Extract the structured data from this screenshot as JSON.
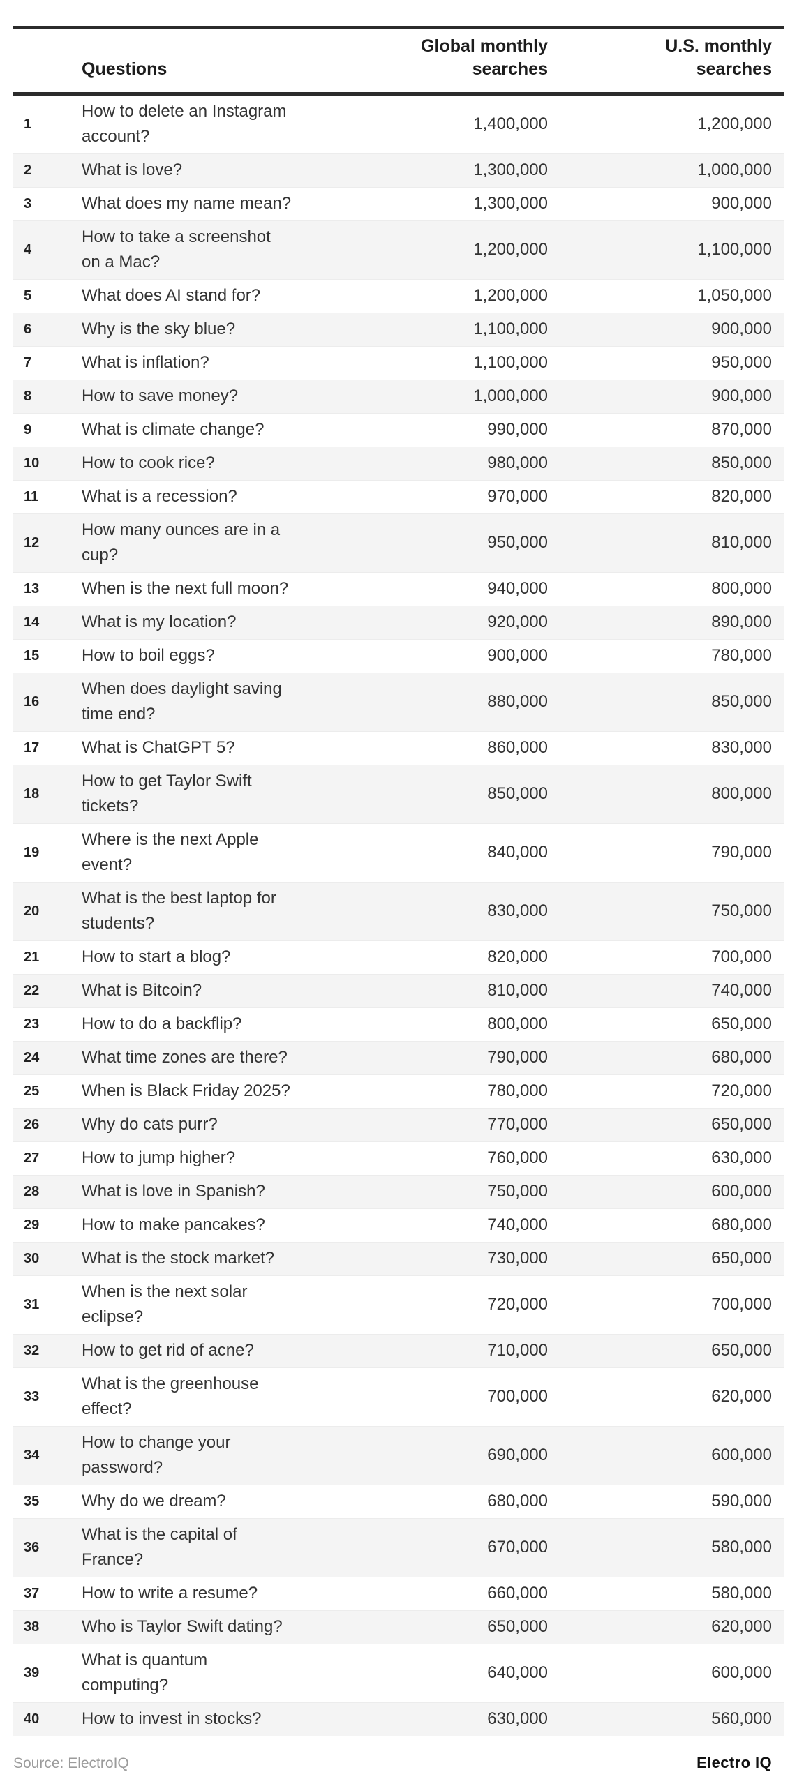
{
  "page": {
    "background": "#ffffff"
  },
  "colors": {
    "rule": "#2b2b2b",
    "row_alt_background": "#f4f4f4",
    "row_divider": "#ececec",
    "body_text": "#333333",
    "muted_text": "#9b9b9b"
  },
  "header": {
    "rank_label": "",
    "question_label": "Questions",
    "global_label": "Global monthly\nsearches",
    "us_label": "U.S. monthly\nsearches"
  },
  "footer": {
    "source": "Source: ElectroIQ",
    "brand": "Electro IQ"
  },
  "chart_data": {
    "type": "table",
    "title": "",
    "columns": [
      "",
      "Questions",
      "Global monthly searches",
      "U.S. monthly searches"
    ],
    "rows": [
      {
        "rank": 1,
        "question": "How to delete an Instagram\naccount?",
        "global": 1400000,
        "us": 1200000
      },
      {
        "rank": 2,
        "question": "What is love?",
        "global": 1300000,
        "us": 1000000
      },
      {
        "rank": 3,
        "question": "What does my name mean?",
        "global": 1300000,
        "us": 900000
      },
      {
        "rank": 4,
        "question": "How to take a screenshot\non a Mac?",
        "global": 1200000,
        "us": 1100000
      },
      {
        "rank": 5,
        "question": "What does AI stand for?",
        "global": 1200000,
        "us": 1050000
      },
      {
        "rank": 6,
        "question": "Why is the sky blue?",
        "global": 1100000,
        "us": 900000
      },
      {
        "rank": 7,
        "question": "What is inflation?",
        "global": 1100000,
        "us": 950000
      },
      {
        "rank": 8,
        "question": "How to save money?",
        "global": 1000000,
        "us": 900000
      },
      {
        "rank": 9,
        "question": "What is climate change?",
        "global": 990000,
        "us": 870000
      },
      {
        "rank": 10,
        "question": "How to cook rice?",
        "global": 980000,
        "us": 850000
      },
      {
        "rank": 11,
        "question": "What is a recession?",
        "global": 970000,
        "us": 820000
      },
      {
        "rank": 12,
        "question": "How many ounces are in a\ncup?",
        "global": 950000,
        "us": 810000
      },
      {
        "rank": 13,
        "question": "When is the next full moon?",
        "global": 940000,
        "us": 800000
      },
      {
        "rank": 14,
        "question": "What is my location?",
        "global": 920000,
        "us": 890000
      },
      {
        "rank": 15,
        "question": "How to boil eggs?",
        "global": 900000,
        "us": 780000
      },
      {
        "rank": 16,
        "question": "When does daylight saving\ntime end?",
        "global": 880000,
        "us": 850000
      },
      {
        "rank": 17,
        "question": "What is ChatGPT 5?",
        "global": 860000,
        "us": 830000
      },
      {
        "rank": 18,
        "question": "How to get Taylor Swift\ntickets?",
        "global": 850000,
        "us": 800000
      },
      {
        "rank": 19,
        "question": "Where is the next Apple\nevent?",
        "global": 840000,
        "us": 790000
      },
      {
        "rank": 20,
        "question": "What is the best laptop for\nstudents?",
        "global": 830000,
        "us": 750000
      },
      {
        "rank": 21,
        "question": "How to start a blog?",
        "global": 820000,
        "us": 700000
      },
      {
        "rank": 22,
        "question": "What is Bitcoin?",
        "global": 810000,
        "us": 740000
      },
      {
        "rank": 23,
        "question": "How to do a backflip?",
        "global": 800000,
        "us": 650000
      },
      {
        "rank": 24,
        "question": "What time zones are there?",
        "global": 790000,
        "us": 680000
      },
      {
        "rank": 25,
        "question": "When is Black Friday 2025?",
        "global": 780000,
        "us": 720000
      },
      {
        "rank": 26,
        "question": "Why do cats purr?",
        "global": 770000,
        "us": 650000
      },
      {
        "rank": 27,
        "question": "How to jump higher?",
        "global": 760000,
        "us": 630000
      },
      {
        "rank": 28,
        "question": "What is love in Spanish?",
        "global": 750000,
        "us": 600000
      },
      {
        "rank": 29,
        "question": "How to make pancakes?",
        "global": 740000,
        "us": 680000
      },
      {
        "rank": 30,
        "question": "What is the stock market?",
        "global": 730000,
        "us": 650000
      },
      {
        "rank": 31,
        "question": "When is the next solar\neclipse?",
        "global": 720000,
        "us": 700000
      },
      {
        "rank": 32,
        "question": "How to get rid of acne?",
        "global": 710000,
        "us": 650000
      },
      {
        "rank": 33,
        "question": "What is the greenhouse\neffect?",
        "global": 700000,
        "us": 620000
      },
      {
        "rank": 34,
        "question": "How to change your\npassword?",
        "global": 690000,
        "us": 600000
      },
      {
        "rank": 35,
        "question": "Why do we dream?",
        "global": 680000,
        "us": 590000
      },
      {
        "rank": 36,
        "question": "What is the capital of\nFrance?",
        "global": 670000,
        "us": 580000
      },
      {
        "rank": 37,
        "question": "How to write a resume?",
        "global": 660000,
        "us": 580000
      },
      {
        "rank": 38,
        "question": "Who is Taylor Swift dating?",
        "global": 650000,
        "us": 620000
      },
      {
        "rank": 39,
        "question": "What is quantum\ncomputing?",
        "global": 640000,
        "us": 600000
      },
      {
        "rank": 40,
        "question": "How to invest in stocks?",
        "global": 630000,
        "us": 560000
      }
    ]
  }
}
